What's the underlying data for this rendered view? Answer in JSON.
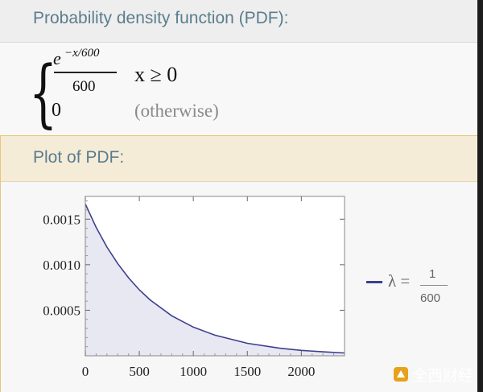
{
  "pdf_pod": {
    "title": "Probability density function (PDF):",
    "numerator_base": "e",
    "numerator_exponent": "−x/600",
    "denominator": "600",
    "condition": "x ≥ 0",
    "zero_value": "0",
    "otherwise_text": "(otherwise)"
  },
  "plot_pod": {
    "title": "Plot of PDF:"
  },
  "chart_data": {
    "type": "area",
    "series": [
      {
        "name": "λ = 1/600",
        "function": "exp(-x/600)/600",
        "x": [
          0,
          100,
          200,
          300,
          400,
          500,
          600,
          800,
          1000,
          1200,
          1500,
          1800,
          2000,
          2200,
          2400
        ],
        "y": [
          0.001667,
          0.001411,
          0.001194,
          0.001011,
          0.000856,
          0.000724,
          0.000613,
          0.000439,
          0.000315,
          0.000226,
          0.000137,
          8.3e-05,
          5.9e-05,
          4.3e-05,
          3.1e-05
        ]
      }
    ],
    "xlim": [
      0,
      2400
    ],
    "ylim": [
      0,
      0.00175
    ],
    "x_ticks": [
      "0",
      "500",
      "1000",
      "1500",
      "2000"
    ],
    "y_ticks": [
      "0.0005",
      "0.0010",
      "0.0015"
    ],
    "legend": {
      "label": "λ = ",
      "frac_num": "1",
      "frac_den": "600",
      "color": "#3d3f8e",
      "position": "right"
    },
    "fill_color": "#e7e8f1",
    "grid": false
  },
  "watermark": {
    "text": "全西财经",
    "logo_color": "#e6a21a"
  }
}
